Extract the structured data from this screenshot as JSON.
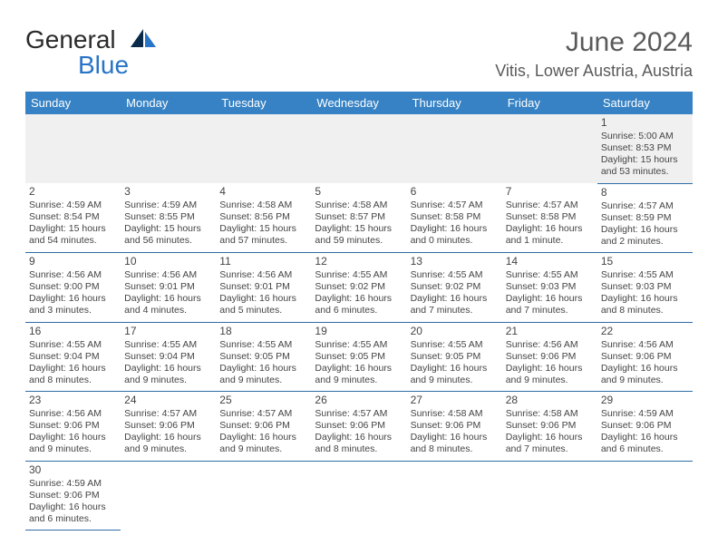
{
  "logo": {
    "general": "General",
    "blue": "Blue"
  },
  "title": "June 2024",
  "location": "Vitis, Lower Austria, Austria",
  "day_headers": [
    "Sunday",
    "Monday",
    "Tuesday",
    "Wednesday",
    "Thursday",
    "Friday",
    "Saturday"
  ],
  "colors": {
    "header_bg": "#3682c4",
    "header_text": "#ffffff",
    "rule": "#2e6da8",
    "first_row_bg": "#f0f0f0",
    "logo_blue": "#2874c7"
  },
  "weeks": [
    [
      null,
      null,
      null,
      null,
      null,
      null,
      {
        "num": "1",
        "sunrise": "Sunrise: 5:00 AM",
        "sunset": "Sunset: 8:53 PM",
        "daylight1": "Daylight: 15 hours",
        "daylight2": "and 53 minutes."
      }
    ],
    [
      {
        "num": "2",
        "sunrise": "Sunrise: 4:59 AM",
        "sunset": "Sunset: 8:54 PM",
        "daylight1": "Daylight: 15 hours",
        "daylight2": "and 54 minutes."
      },
      {
        "num": "3",
        "sunrise": "Sunrise: 4:59 AM",
        "sunset": "Sunset: 8:55 PM",
        "daylight1": "Daylight: 15 hours",
        "daylight2": "and 56 minutes."
      },
      {
        "num": "4",
        "sunrise": "Sunrise: 4:58 AM",
        "sunset": "Sunset: 8:56 PM",
        "daylight1": "Daylight: 15 hours",
        "daylight2": "and 57 minutes."
      },
      {
        "num": "5",
        "sunrise": "Sunrise: 4:58 AM",
        "sunset": "Sunset: 8:57 PM",
        "daylight1": "Daylight: 15 hours",
        "daylight2": "and 59 minutes."
      },
      {
        "num": "6",
        "sunrise": "Sunrise: 4:57 AM",
        "sunset": "Sunset: 8:58 PM",
        "daylight1": "Daylight: 16 hours",
        "daylight2": "and 0 minutes."
      },
      {
        "num": "7",
        "sunrise": "Sunrise: 4:57 AM",
        "sunset": "Sunset: 8:58 PM",
        "daylight1": "Daylight: 16 hours",
        "daylight2": "and 1 minute."
      },
      {
        "num": "8",
        "sunrise": "Sunrise: 4:57 AM",
        "sunset": "Sunset: 8:59 PM",
        "daylight1": "Daylight: 16 hours",
        "daylight2": "and 2 minutes."
      }
    ],
    [
      {
        "num": "9",
        "sunrise": "Sunrise: 4:56 AM",
        "sunset": "Sunset: 9:00 PM",
        "daylight1": "Daylight: 16 hours",
        "daylight2": "and 3 minutes."
      },
      {
        "num": "10",
        "sunrise": "Sunrise: 4:56 AM",
        "sunset": "Sunset: 9:01 PM",
        "daylight1": "Daylight: 16 hours",
        "daylight2": "and 4 minutes."
      },
      {
        "num": "11",
        "sunrise": "Sunrise: 4:56 AM",
        "sunset": "Sunset: 9:01 PM",
        "daylight1": "Daylight: 16 hours",
        "daylight2": "and 5 minutes."
      },
      {
        "num": "12",
        "sunrise": "Sunrise: 4:55 AM",
        "sunset": "Sunset: 9:02 PM",
        "daylight1": "Daylight: 16 hours",
        "daylight2": "and 6 minutes."
      },
      {
        "num": "13",
        "sunrise": "Sunrise: 4:55 AM",
        "sunset": "Sunset: 9:02 PM",
        "daylight1": "Daylight: 16 hours",
        "daylight2": "and 7 minutes."
      },
      {
        "num": "14",
        "sunrise": "Sunrise: 4:55 AM",
        "sunset": "Sunset: 9:03 PM",
        "daylight1": "Daylight: 16 hours",
        "daylight2": "and 7 minutes."
      },
      {
        "num": "15",
        "sunrise": "Sunrise: 4:55 AM",
        "sunset": "Sunset: 9:03 PM",
        "daylight1": "Daylight: 16 hours",
        "daylight2": "and 8 minutes."
      }
    ],
    [
      {
        "num": "16",
        "sunrise": "Sunrise: 4:55 AM",
        "sunset": "Sunset: 9:04 PM",
        "daylight1": "Daylight: 16 hours",
        "daylight2": "and 8 minutes."
      },
      {
        "num": "17",
        "sunrise": "Sunrise: 4:55 AM",
        "sunset": "Sunset: 9:04 PM",
        "daylight1": "Daylight: 16 hours",
        "daylight2": "and 9 minutes."
      },
      {
        "num": "18",
        "sunrise": "Sunrise: 4:55 AM",
        "sunset": "Sunset: 9:05 PM",
        "daylight1": "Daylight: 16 hours",
        "daylight2": "and 9 minutes."
      },
      {
        "num": "19",
        "sunrise": "Sunrise: 4:55 AM",
        "sunset": "Sunset: 9:05 PM",
        "daylight1": "Daylight: 16 hours",
        "daylight2": "and 9 minutes."
      },
      {
        "num": "20",
        "sunrise": "Sunrise: 4:55 AM",
        "sunset": "Sunset: 9:05 PM",
        "daylight1": "Daylight: 16 hours",
        "daylight2": "and 9 minutes."
      },
      {
        "num": "21",
        "sunrise": "Sunrise: 4:56 AM",
        "sunset": "Sunset: 9:06 PM",
        "daylight1": "Daylight: 16 hours",
        "daylight2": "and 9 minutes."
      },
      {
        "num": "22",
        "sunrise": "Sunrise: 4:56 AM",
        "sunset": "Sunset: 9:06 PM",
        "daylight1": "Daylight: 16 hours",
        "daylight2": "and 9 minutes."
      }
    ],
    [
      {
        "num": "23",
        "sunrise": "Sunrise: 4:56 AM",
        "sunset": "Sunset: 9:06 PM",
        "daylight1": "Daylight: 16 hours",
        "daylight2": "and 9 minutes."
      },
      {
        "num": "24",
        "sunrise": "Sunrise: 4:57 AM",
        "sunset": "Sunset: 9:06 PM",
        "daylight1": "Daylight: 16 hours",
        "daylight2": "and 9 minutes."
      },
      {
        "num": "25",
        "sunrise": "Sunrise: 4:57 AM",
        "sunset": "Sunset: 9:06 PM",
        "daylight1": "Daylight: 16 hours",
        "daylight2": "and 9 minutes."
      },
      {
        "num": "26",
        "sunrise": "Sunrise: 4:57 AM",
        "sunset": "Sunset: 9:06 PM",
        "daylight1": "Daylight: 16 hours",
        "daylight2": "and 8 minutes."
      },
      {
        "num": "27",
        "sunrise": "Sunrise: 4:58 AM",
        "sunset": "Sunset: 9:06 PM",
        "daylight1": "Daylight: 16 hours",
        "daylight2": "and 8 minutes."
      },
      {
        "num": "28",
        "sunrise": "Sunrise: 4:58 AM",
        "sunset": "Sunset: 9:06 PM",
        "daylight1": "Daylight: 16 hours",
        "daylight2": "and 7 minutes."
      },
      {
        "num": "29",
        "sunrise": "Sunrise: 4:59 AM",
        "sunset": "Sunset: 9:06 PM",
        "daylight1": "Daylight: 16 hours",
        "daylight2": "and 6 minutes."
      }
    ],
    [
      {
        "num": "30",
        "sunrise": "Sunrise: 4:59 AM",
        "sunset": "Sunset: 9:06 PM",
        "daylight1": "Daylight: 16 hours",
        "daylight2": "and 6 minutes."
      },
      null,
      null,
      null,
      null,
      null,
      null
    ]
  ]
}
